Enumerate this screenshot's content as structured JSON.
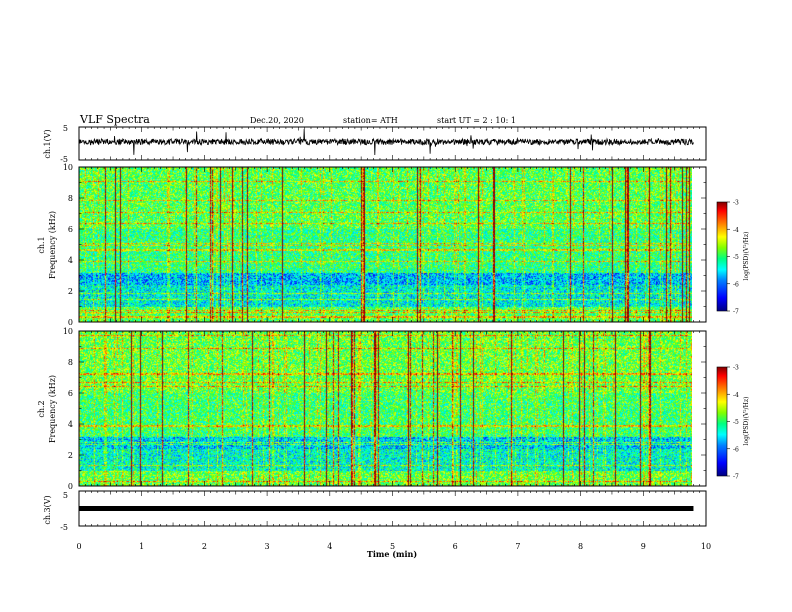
{
  "header": {
    "title": "VLF Spectra",
    "date": "Dec.20, 2020",
    "station": "station= ATH",
    "start": "start  UT =   2 : 10: 1"
  },
  "colors": {
    "background": "#ffffff",
    "axis": "#000000",
    "colormap": [
      "#000080",
      "#0000ff",
      "#0080ff",
      "#00ffff",
      "#00ff80",
      "#80ff00",
      "#ffff00",
      "#ff8000",
      "#ff0000",
      "#800000"
    ]
  },
  "chart_data": [
    {
      "id": "ch1_waveform",
      "type": "line",
      "ylabel": "ch.1(V)",
      "ylim": [
        -5,
        5
      ],
      "yticks": [
        "5",
        "-5"
      ],
      "xlim": [
        0,
        10
      ],
      "baseline_v": 0.5,
      "noise_amplitude_v": 1.5
    },
    {
      "id": "ch1_spectrogram",
      "type": "heatmap",
      "ylabel_channel": "ch.1",
      "ylabel": "Frequency  (kHz)",
      "ylim": [
        0,
        10
      ],
      "yticks": [
        "0",
        "2",
        "4",
        "6",
        "8",
        "10"
      ],
      "xlim": [
        0,
        10
      ],
      "colorbar": {
        "label": "log(PSD)(V²/Hz)",
        "range": [
          -7,
          -3
        ],
        "ticks": [
          "-3",
          "-4",
          "-5",
          "-6",
          "-7"
        ]
      }
    },
    {
      "id": "ch2_spectrogram",
      "type": "heatmap",
      "ylabel_channel": "ch.2",
      "ylabel": "Frequency  (kHz)",
      "ylim": [
        0,
        10
      ],
      "yticks": [
        "0",
        "2",
        "4",
        "6",
        "8",
        "10"
      ],
      "xlim": [
        0,
        10
      ],
      "colorbar": {
        "label": "log(PSD)(V²/Hz)",
        "range": [
          -7,
          -3
        ],
        "ticks": [
          "-3",
          "-4",
          "-5",
          "-6",
          "-7"
        ]
      }
    },
    {
      "id": "ch3_waveform",
      "type": "line",
      "ylabel": "ch.3(V)",
      "ylim": [
        -5,
        5
      ],
      "yticks": [
        "5",
        "-5"
      ],
      "xlim": [
        0,
        10
      ],
      "xticks": [
        "0",
        "1",
        "2",
        "3",
        "4",
        "5",
        "6",
        "7",
        "8",
        "9",
        "10"
      ],
      "xlabel": "Time  (min)",
      "data_end_min": 9.8,
      "baseline_v": 0.0
    }
  ]
}
